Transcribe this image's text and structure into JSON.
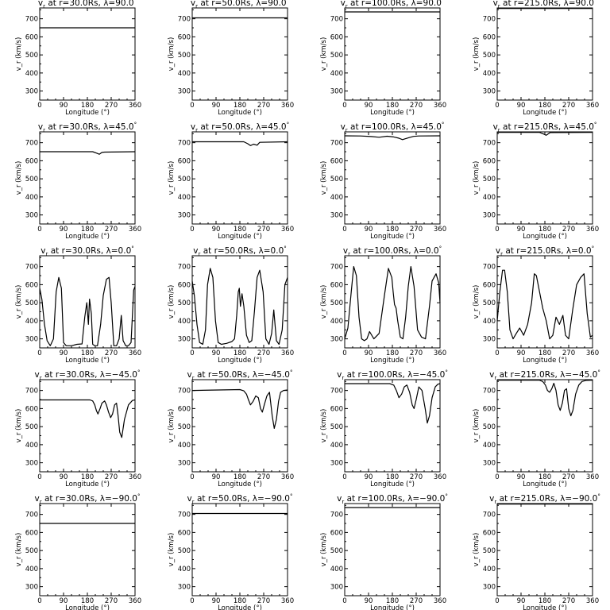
{
  "figure": {
    "rows": 5,
    "cols": 4,
    "title_prefix": "v",
    "title_sub": "r",
    "title_at": "at r=",
    "title_rs": "Rs,  λ=",
    "title_deg": "°"
  },
  "chart_data": [
    {
      "type": "line",
      "title": "v_r at r=30.0Rs, λ=90.0°",
      "r": "30.0",
      "lat": "90.0",
      "xlabel": "Longitude (°)",
      "ylabel": "v_r (km/s)",
      "xlim": [
        0,
        360
      ],
      "ylim": [
        250,
        760
      ],
      "xticks": [
        0,
        90,
        180,
        270,
        360
      ],
      "yticks": [
        300,
        400,
        500,
        600,
        700
      ],
      "x": [
        0,
        360
      ],
      "y": [
        650,
        650
      ]
    },
    {
      "type": "line",
      "title": "v_r at r=50.0Rs, λ=90.0°",
      "r": "50.0",
      "lat": "90.0",
      "xlabel": "Longitude (°)",
      "ylabel": "v_r (km/s)",
      "xlim": [
        0,
        360
      ],
      "ylim": [
        250,
        760
      ],
      "xticks": [
        0,
        90,
        180,
        270,
        360
      ],
      "yticks": [
        300,
        400,
        500,
        600,
        700
      ],
      "x": [
        0,
        360
      ],
      "y": [
        705,
        705
      ]
    },
    {
      "type": "line",
      "title": "v_r at r=100.0Rs, λ=90.0°",
      "r": "100.0",
      "lat": "90.0",
      "xlabel": "Longitude (°)",
      "ylabel": "v_r (km/s)",
      "xlim": [
        0,
        360
      ],
      "ylim": [
        250,
        760
      ],
      "xticks": [
        0,
        90,
        180,
        270,
        360
      ],
      "yticks": [
        300,
        400,
        500,
        600,
        700
      ],
      "x": [
        0,
        360
      ],
      "y": [
        738,
        738
      ]
    },
    {
      "type": "line",
      "title": "v_r at r=215.0Rs, λ=90.0°",
      "r": "215.0",
      "lat": "90.0",
      "xlabel": "Longitude (°)",
      "ylabel": "v_r (km/s)",
      "xlim": [
        0,
        360
      ],
      "ylim": [
        250,
        760
      ],
      "xticks": [
        0,
        90,
        180,
        270,
        360
      ],
      "yticks": [
        300,
        400,
        500,
        600,
        700
      ],
      "x": [
        0,
        360
      ],
      "y": [
        757,
        757
      ]
    },
    {
      "type": "line",
      "title": "v_r at r=30.0Rs, λ=45.0°",
      "r": "30.0",
      "lat": "45.0",
      "xlabel": "Longitude (°)",
      "ylabel": "v_r (km/s)",
      "xlim": [
        0,
        360
      ],
      "ylim": [
        250,
        760
      ],
      "xticks": [
        0,
        90,
        180,
        270,
        360
      ],
      "yticks": [
        300,
        400,
        500,
        600,
        700
      ],
      "x": [
        0,
        200,
        215,
        225,
        235,
        245,
        360
      ],
      "y": [
        650,
        650,
        642,
        636,
        646,
        648,
        650
      ]
    },
    {
      "type": "line",
      "title": "v_r at r=50.0Rs, λ=45.0°",
      "r": "50.0",
      "lat": "45.0",
      "xlabel": "Longitude (°)",
      "ylabel": "v_r (km/s)",
      "xlim": [
        0,
        360
      ],
      "ylim": [
        250,
        760
      ],
      "xticks": [
        0,
        90,
        180,
        270,
        360
      ],
      "yticks": [
        300,
        400,
        500,
        600,
        700
      ],
      "x": [
        0,
        195,
        210,
        220,
        232,
        245,
        255,
        360
      ],
      "y": [
        705,
        705,
        694,
        684,
        692,
        686,
        702,
        705
      ]
    },
    {
      "type": "line",
      "title": "v_r at r=100.0Rs, λ=45.0°",
      "r": "100.0",
      "lat": "45.0",
      "xlabel": "Longitude (°)",
      "ylabel": "v_r (km/s)",
      "xlim": [
        0,
        360
      ],
      "ylim": [
        250,
        760
      ],
      "xticks": [
        0,
        90,
        180,
        270,
        360
      ],
      "yticks": [
        300,
        400,
        500,
        600,
        700
      ],
      "x": [
        0,
        60,
        100,
        130,
        160,
        185,
        205,
        218,
        230,
        245,
        260,
        280,
        360
      ],
      "y": [
        738,
        737,
        734,
        730,
        736,
        732,
        725,
        717,
        722,
        729,
        735,
        737,
        738
      ]
    },
    {
      "type": "line",
      "title": "v_r at r=215.0Rs, λ=45.0°",
      "r": "215.0",
      "lat": "45.0",
      "xlabel": "Longitude (°)",
      "ylabel": "v_r (km/s)",
      "xlim": [
        0,
        360
      ],
      "ylim": [
        250,
        760
      ],
      "xticks": [
        0,
        90,
        180,
        270,
        360
      ],
      "yticks": [
        300,
        400,
        500,
        600,
        700
      ],
      "x": [
        0,
        160,
        175,
        185,
        200,
        360
      ],
      "y": [
        757,
        757,
        748,
        741,
        756,
        757
      ]
    },
    {
      "type": "line",
      "title": "v_r at r=30.0Rs, λ=0.0°",
      "r": "30.0",
      "lat": "0.0",
      "xlabel": "Longitude (°)",
      "ylabel": "v_r (km/s)",
      "xlim": [
        0,
        360
      ],
      "ylim": [
        250,
        760
      ],
      "xticks": [
        0,
        90,
        180,
        270,
        360
      ],
      "yticks": [
        300,
        400,
        500,
        600,
        700
      ],
      "x": [
        0,
        8,
        18,
        28,
        40,
        52,
        62,
        72,
        82,
        90,
        100,
        120,
        140,
        160,
        170,
        178,
        184,
        188,
        195,
        200,
        208,
        218,
        230,
        240,
        252,
        262,
        270,
        280,
        290,
        300,
        308,
        315,
        325,
        335,
        345,
        355,
        360
      ],
      "y": [
        580,
        520,
        380,
        290,
        262,
        300,
        560,
        640,
        580,
        280,
        262,
        262,
        270,
        272,
        420,
        500,
        380,
        520,
        440,
        270,
        262,
        262,
        380,
        540,
        630,
        640,
        500,
        262,
        262,
        300,
        430,
        290,
        262,
        262,
        280,
        570,
        590
      ]
    },
    {
      "type": "line",
      "title": "v_r at r=50.0Rs, λ=0.0°",
      "r": "50.0",
      "lat": "0.0",
      "xlabel": "Longitude (°)",
      "ylabel": "v_r (km/s)",
      "xlim": [
        0,
        360
      ],
      "ylim": [
        250,
        760
      ],
      "xticks": [
        0,
        90,
        180,
        270,
        360
      ],
      "yticks": [
        300,
        400,
        500,
        600,
        700
      ],
      "x": [
        0,
        8,
        18,
        28,
        40,
        50,
        58,
        68,
        78,
        88,
        98,
        110,
        130,
        150,
        160,
        168,
        174,
        178,
        182,
        188,
        195,
        205,
        215,
        225,
        235,
        245,
        255,
        268,
        278,
        290,
        300,
        308,
        318,
        328,
        340,
        350,
        360
      ],
      "y": [
        620,
        540,
        380,
        280,
        270,
        350,
        600,
        690,
        640,
        400,
        280,
        270,
        275,
        285,
        300,
        430,
        560,
        580,
        480,
        550,
        480,
        320,
        280,
        290,
        450,
        640,
        680,
        560,
        300,
        270,
        330,
        460,
        290,
        270,
        350,
        600,
        640
      ]
    },
    {
      "type": "line",
      "title": "v_r at r=100.0Rs, λ=0.0°",
      "r": "100.0",
      "lat": "0.0",
      "xlabel": "Longitude (°)",
      "ylabel": "v_r (km/s)",
      "xlim": [
        0,
        360
      ],
      "ylim": [
        250,
        760
      ],
      "xticks": [
        0,
        90,
        180,
        270,
        360
      ],
      "yticks": [
        300,
        400,
        500,
        600,
        700
      ],
      "x": [
        0,
        12,
        24,
        34,
        44,
        54,
        64,
        74,
        84,
        94,
        110,
        130,
        150,
        165,
        178,
        183,
        188,
        194,
        200,
        210,
        220,
        230,
        240,
        250,
        262,
        275,
        290,
        305,
        320,
        330,
        345,
        355,
        360
      ],
      "y": [
        300,
        360,
        550,
        700,
        650,
        420,
        300,
        290,
        300,
        340,
        300,
        330,
        540,
        690,
        640,
        560,
        490,
        470,
        400,
        310,
        300,
        420,
        590,
        700,
        590,
        350,
        310,
        300,
        480,
        620,
        660,
        610,
        500
      ]
    },
    {
      "type": "line",
      "title": "v_r at r=215.0Rs, λ=0.0°",
      "r": "215.0",
      "lat": "0.0",
      "xlabel": "Longitude (°)",
      "ylabel": "v_r (km/s)",
      "xlim": [
        0,
        360
      ],
      "ylim": [
        250,
        760
      ],
      "xticks": [
        0,
        90,
        180,
        270,
        360
      ],
      "yticks": [
        300,
        400,
        500,
        600,
        700
      ],
      "x": [
        0,
        10,
        20,
        28,
        38,
        48,
        60,
        72,
        85,
        100,
        115,
        130,
        140,
        148,
        160,
        172,
        185,
        198,
        210,
        222,
        235,
        248,
        258,
        270,
        285,
        300,
        315,
        328,
        340,
        352,
        360
      ],
      "y": [
        400,
        560,
        680,
        680,
        560,
        350,
        300,
        330,
        360,
        320,
        380,
        500,
        660,
        650,
        560,
        470,
        400,
        300,
        320,
        420,
        380,
        430,
        320,
        300,
        460,
        600,
        640,
        660,
        440,
        310,
        320
      ]
    },
    {
      "type": "line",
      "title": "v_r at r=30.0Rs, λ=-45.0°",
      "r": "30.0",
      "lat": "−45.0",
      "xlabel": "Longitude (°)",
      "ylabel": "v_r (km/s)",
      "xlim": [
        0,
        360
      ],
      "ylim": [
        250,
        760
      ],
      "xticks": [
        0,
        90,
        180,
        270,
        360
      ],
      "yticks": [
        300,
        400,
        500,
        600,
        700
      ],
      "x": [
        0,
        190,
        200,
        208,
        214,
        220,
        228,
        235,
        245,
        252,
        260,
        268,
        275,
        283,
        290,
        296,
        302,
        310,
        320,
        335,
        350,
        360
      ],
      "y": [
        648,
        648,
        642,
        620,
        590,
        570,
        600,
        630,
        642,
        620,
        580,
        550,
        570,
        620,
        630,
        560,
        470,
        440,
        540,
        620,
        645,
        648
      ]
    },
    {
      "type": "line",
      "title": "v_r at r=50.0Rs, λ=-45.0°",
      "r": "50.0",
      "lat": "−45.0",
      "xlabel": "Longitude (°)",
      "ylabel": "v_r (km/s)",
      "xlim": [
        0,
        360
      ],
      "ylim": [
        250,
        760
      ],
      "xticks": [
        0,
        90,
        180,
        270,
        360
      ],
      "yticks": [
        300,
        400,
        500,
        600,
        700
      ],
      "x": [
        0,
        180,
        195,
        205,
        212,
        220,
        230,
        240,
        250,
        258,
        265,
        272,
        282,
        292,
        302,
        310,
        318,
        326,
        334,
        345,
        360
      ],
      "y": [
        700,
        705,
        698,
        680,
        650,
        620,
        640,
        670,
        660,
        600,
        580,
        620,
        670,
        690,
        560,
        490,
        540,
        640,
        690,
        700,
        703
      ]
    },
    {
      "type": "line",
      "title": "v_r at r=100.0Rs, λ=-45.0°",
      "r": "100.0",
      "lat": "−45.0",
      "xlabel": "Longitude (°)",
      "ylabel": "v_r (km/s)",
      "xlim": [
        0,
        360
      ],
      "ylim": [
        250,
        760
      ],
      "xticks": [
        0,
        90,
        180,
        270,
        360
      ],
      "yticks": [
        300,
        400,
        500,
        600,
        700
      ],
      "x": [
        0,
        170,
        185,
        195,
        205,
        215,
        225,
        235,
        245,
        255,
        262,
        270,
        280,
        292,
        304,
        312,
        320,
        330,
        342,
        352,
        360
      ],
      "y": [
        738,
        738,
        730,
        700,
        660,
        680,
        720,
        730,
        690,
        620,
        600,
        650,
        720,
        700,
        600,
        520,
        560,
        660,
        720,
        735,
        738
      ]
    },
    {
      "type": "line",
      "title": "v_r at r=215.0Rs, λ=-45.0°",
      "r": "215.0",
      "lat": "−45.0",
      "xlabel": "Longitude (°)",
      "ylabel": "v_r (km/s)",
      "xlim": [
        0,
        360
      ],
      "ylim": [
        250,
        760
      ],
      "xticks": [
        0,
        90,
        180,
        270,
        360
      ],
      "yticks": [
        300,
        400,
        500,
        600,
        700
      ],
      "x": [
        0,
        160,
        172,
        182,
        190,
        198,
        206,
        214,
        222,
        230,
        238,
        246,
        254,
        262,
        270,
        278,
        286,
        296,
        308,
        320,
        335,
        360
      ],
      "y": [
        757,
        757,
        750,
        730,
        700,
        690,
        710,
        740,
        700,
        620,
        590,
        630,
        700,
        710,
        600,
        560,
        590,
        680,
        730,
        750,
        756,
        757
      ]
    },
    {
      "type": "line",
      "title": "v_r at r=30.0Rs, λ=-90.0°",
      "r": "30.0",
      "lat": "−90.0",
      "xlabel": "Longitude (°)",
      "ylabel": "v_r (km/s)",
      "xlim": [
        0,
        360
      ],
      "ylim": [
        250,
        760
      ],
      "xticks": [
        0,
        90,
        180,
        270,
        360
      ],
      "yticks": [
        300,
        400,
        500,
        600,
        700
      ],
      "x": [
        0,
        360
      ],
      "y": [
        650,
        650
      ]
    },
    {
      "type": "line",
      "title": "v_r at r=50.0Rs, λ=-90.0°",
      "r": "50.0",
      "lat": "−90.0",
      "xlabel": "Longitude (°)",
      "ylabel": "v_r (km/s)",
      "xlim": [
        0,
        360
      ],
      "ylim": [
        250,
        760
      ],
      "xticks": [
        0,
        90,
        180,
        270,
        360
      ],
      "yticks": [
        300,
        400,
        500,
        600,
        700
      ],
      "x": [
        0,
        360
      ],
      "y": [
        705,
        705
      ]
    },
    {
      "type": "line",
      "title": "v_r at r=100.0Rs, λ=-90.0°",
      "r": "100.0",
      "lat": "−90.0",
      "xlabel": "Longitude (°)",
      "ylabel": "v_r (km/s)",
      "xlim": [
        0,
        360
      ],
      "ylim": [
        250,
        760
      ],
      "xticks": [
        0,
        90,
        180,
        270,
        360
      ],
      "yticks": [
        300,
        400,
        500,
        600,
        700
      ],
      "x": [
        0,
        360
      ],
      "y": [
        738,
        738
      ]
    },
    {
      "type": "line",
      "title": "v_r at r=215.0Rs, λ=-90.0°",
      "r": "215.0",
      "lat": "−90.0",
      "xlabel": "Longitude (°)",
      "ylabel": "v_r (km/s)",
      "xlim": [
        0,
        360
      ],
      "ylim": [
        250,
        760
      ],
      "xticks": [
        0,
        90,
        180,
        270,
        360
      ],
      "yticks": [
        300,
        400,
        500,
        600,
        700
      ],
      "x": [
        0,
        360
      ],
      "y": [
        757,
        757
      ]
    }
  ]
}
